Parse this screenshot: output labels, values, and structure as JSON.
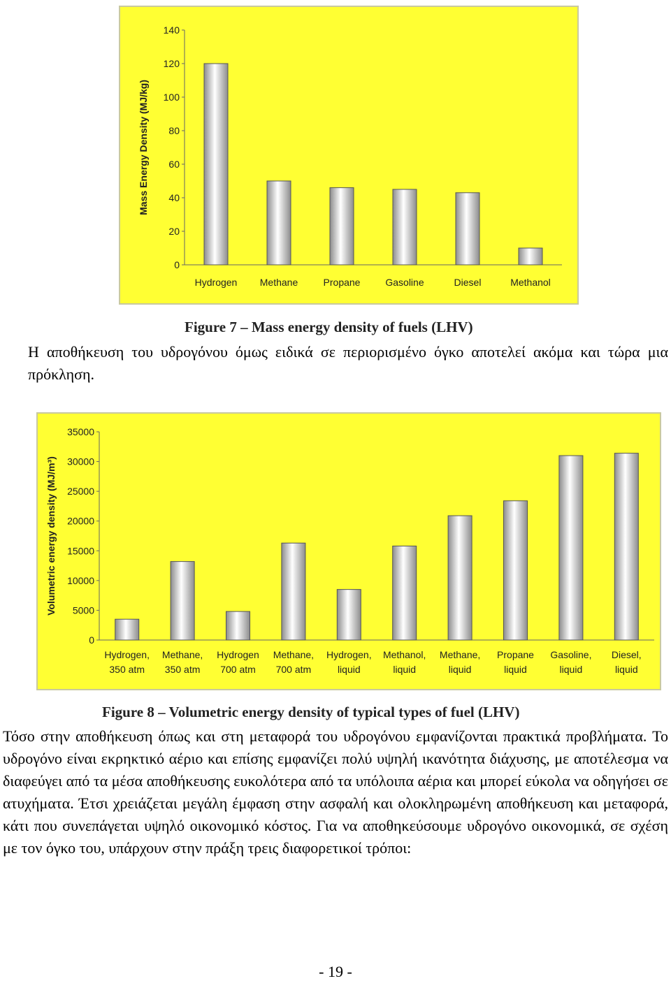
{
  "figure7": {
    "caption": "Figure 7 – Mass energy density of fuels (LHV)",
    "chart_data": {
      "type": "bar",
      "ylabel": "Mass Energy Density (MJ/kg)",
      "ylim": [
        0,
        140
      ],
      "yticks": [
        0,
        20,
        40,
        60,
        80,
        100,
        120,
        140
      ],
      "categories": [
        [
          "Hydrogen"
        ],
        [
          "Methane"
        ],
        [
          "Propane"
        ],
        [
          "Gasoline"
        ],
        [
          "Diesel"
        ],
        [
          "Methanol"
        ]
      ],
      "values": [
        120,
        50,
        46,
        45,
        43,
        10
      ],
      "grid": false,
      "colors": {
        "background": "#ffff33",
        "bar_dark": "#8c8c8c",
        "bar_light": "#ffffff"
      }
    }
  },
  "paragraph1": "Η αποθήκευση του υδρογόνου όμως ειδικά σε περιορισμένο όγκο αποτελεί ακόμα και τώρα μια πρόκληση.",
  "figure8": {
    "caption": "Figure 8 – Volumetric energy density of typical types of fuel (LHV)",
    "chart_data": {
      "type": "bar",
      "ylabel": "Volumetric energy density (MJ/m³)",
      "ylim": [
        0,
        35000
      ],
      "yticks": [
        0,
        5000,
        10000,
        15000,
        20000,
        25000,
        30000,
        35000
      ],
      "categories": [
        [
          "Hydrogen,",
          "350 atm"
        ],
        [
          "Methane,",
          "350 atm"
        ],
        [
          "Hydrogen",
          "700 atm"
        ],
        [
          "Methane,",
          "700 atm"
        ],
        [
          "Hydrogen,",
          "liquid"
        ],
        [
          "Methanol,",
          "liquid"
        ],
        [
          "Methane,",
          "liquid"
        ],
        [
          "Propane",
          "liquid"
        ],
        [
          "Gasoline,",
          "liquid"
        ],
        [
          "Diesel,",
          "liquid"
        ]
      ],
      "values": [
        3500,
        13200,
        4800,
        16300,
        8500,
        15800,
        20900,
        23400,
        31000,
        31400
      ],
      "grid": false,
      "colors": {
        "background": "#ffff33",
        "bar_dark": "#8c8c8c",
        "bar_light": "#ffffff"
      }
    }
  },
  "paragraph2": "Τόσο στην αποθήκευση όπως και στη μεταφορά του υδρογόνου εμφανίζονται πρακτικά προβλήματα. Το υδρογόνο είναι εκρηκτικό αέριο και επίσης εμφανίζει πολύ υψηλή ικανότητα διάχυσης, με αποτέλεσμα να διαφεύγει από τα μέσα αποθήκευσης ευκολότερα από τα υπόλοιπα αέρια και μπορεί εύκολα να οδηγήσει σε ατυχήματα. Έτσι χρειάζεται μεγάλη έμφαση στην ασφαλή και ολοκληρωμένη αποθήκευση και μεταφορά, κάτι που συνεπάγεται υψηλό οικονομικό κόστος. Για να αποθηκεύσουμε υδρογόνο οικονομικά, σε σχέση με τον όγκο του, υπάρχουν στην πράξη τρεις διαφορετικοί τρόποι:",
  "page_number": "- 19 -"
}
